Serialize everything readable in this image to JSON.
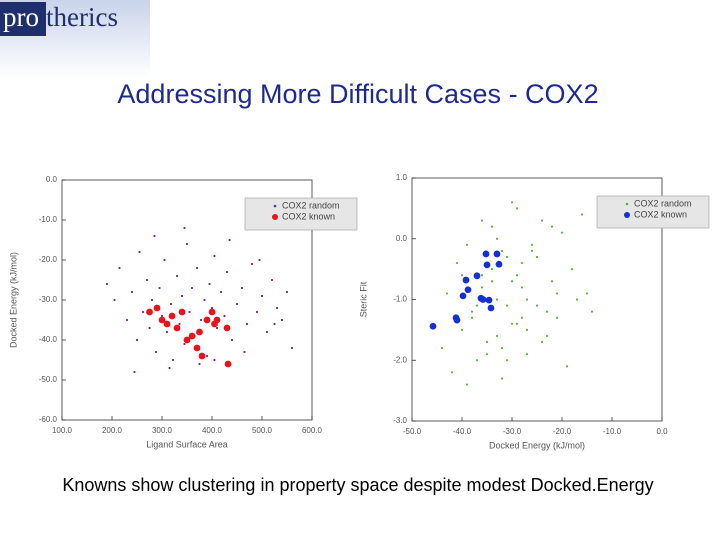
{
  "slide": {
    "logo_prefix": "pro",
    "logo_suffix": "therics",
    "title": "Addressing More Difficult Cases - COX2",
    "caption": "Knowns show clustering in property space despite modest Docked.Energy"
  },
  "chart_data": [
    {
      "type": "scatter",
      "x_label": "Ligand Surface Area",
      "y_label": "Docked Energy (kJ/mol)",
      "xlim": [
        100,
        600
      ],
      "ylim": [
        -60,
        0
      ],
      "xticks": [
        {
          "value": 100,
          "label": "100.0"
        },
        {
          "value": 200,
          "label": "200.0"
        },
        {
          "value": 300,
          "label": "300.0"
        },
        {
          "value": 400,
          "label": "400.0"
        },
        {
          "value": 500,
          "label": "500.0"
        },
        {
          "value": 600,
          "label": "600.0"
        }
      ],
      "yticks": [
        {
          "value": 0,
          "label": "0.0"
        },
        {
          "value": -10,
          "label": "-10.0"
        },
        {
          "value": -20,
          "label": "-20.0"
        },
        {
          "value": -30,
          "label": "-30.0"
        },
        {
          "value": -40,
          "label": "-40.0"
        },
        {
          "value": -50,
          "label": "-50.0"
        },
        {
          "value": -60,
          "label": "-60.0"
        }
      ],
      "legend": "upper right",
      "series": [
        {
          "name": "COX2 random",
          "color": "#6a2c91",
          "x": [
            190,
            205,
            215,
            230,
            240,
            250,
            255,
            262,
            270,
            275,
            280,
            288,
            295,
            300,
            305,
            310,
            318,
            322,
            330,
            335,
            340,
            345,
            350,
            355,
            360,
            365,
            370,
            378,
            385,
            390,
            395,
            400,
            405,
            410,
            418,
            425,
            430,
            440,
            450,
            460,
            470,
            480,
            490,
            500,
            510,
            520,
            530,
            540,
            550,
            560,
            245,
            285,
            315,
            345,
            375,
            405,
            435,
            465,
            495,
            525
          ],
          "values": [
            -26,
            -30,
            -22,
            -35,
            -28,
            -40,
            -18,
            -33,
            -25,
            -37,
            -30,
            -43,
            -27,
            -34,
            -20,
            -38,
            -31,
            -45,
            -24,
            -36,
            -29,
            -41,
            -16,
            -33,
            -27,
            -39,
            -22,
            -35,
            -30,
            -44,
            -26,
            -32,
            -19,
            -37,
            -28,
            -34,
            -23,
            -40,
            -31,
            -27,
            -36,
            -21,
            -33,
            -29,
            -38,
            -25,
            -32,
            -35,
            -28,
            -42,
            -48,
            -14,
            -47,
            -12,
            -46,
            -45,
            -15,
            -43,
            -20,
            -36
          ]
        },
        {
          "name": "COX2 known",
          "color": "#e8141c",
          "x": [
            275,
            290,
            300,
            310,
            320,
            330,
            340,
            350,
            360,
            370,
            375,
            380,
            390,
            400,
            405,
            410,
            430,
            432
          ],
          "values": [
            -33,
            -32,
            -35,
            -36,
            -34,
            -37,
            -33,
            -40,
            -39,
            -42,
            -38,
            -44,
            -35,
            -33,
            -36,
            -35,
            -37,
            -46
          ]
        }
      ]
    },
    {
      "type": "scatter",
      "x_label": "Docked Energy (kJ/mol)",
      "y_label": "Steric Fit",
      "xlim": [
        -50,
        0
      ],
      "ylim": [
        -3,
        1
      ],
      "xticks": [
        {
          "value": -50,
          "label": "-50.0"
        },
        {
          "value": -40,
          "label": "-40.0"
        },
        {
          "value": -30,
          "label": "-30.0"
        },
        {
          "value": -20,
          "label": "-20.0"
        },
        {
          "value": -10,
          "label": "-10.0"
        },
        {
          "value": 0,
          "label": "0.0"
        }
      ],
      "yticks": [
        {
          "value": 1,
          "label": "1.0"
        },
        {
          "value": 0,
          "label": "0.0"
        },
        {
          "value": -1,
          "label": "-1.0"
        },
        {
          "value": -2,
          "label": "-2.0"
        },
        {
          "value": -3,
          "label": "-3.0"
        }
      ],
      "legend": "upper right",
      "series": [
        {
          "name": "COX2 random",
          "color": "#5cb040",
          "x": [
            -44,
            -43,
            -42,
            -41,
            -40,
            -39,
            -38,
            -37,
            -36,
            -35,
            -34,
            -33,
            -32,
            -31,
            -30,
            -29,
            -28,
            -27,
            -26,
            -25,
            -24,
            -23,
            -22,
            -21,
            -20,
            -19,
            -18,
            -17,
            -16,
            -15,
            -38,
            -36,
            -34,
            -33,
            -32,
            -31,
            -30,
            -29,
            -28,
            -27,
            -35,
            -33,
            -31,
            -29,
            -27,
            -25,
            -23,
            -21,
            -39,
            -37,
            -36,
            -34,
            -32,
            -30,
            -28,
            -26,
            -24,
            -22,
            -40,
            -14
          ],
          "values": [
            -1.8,
            -0.9,
            -2.2,
            -0.4,
            -1.5,
            -0.1,
            -1.2,
            -2.0,
            -0.6,
            -1.7,
            0.2,
            -1.0,
            -2.3,
            -0.3,
            -1.4,
            0.5,
            -0.8,
            -1.9,
            -0.2,
            -1.1,
            0.3,
            -1.6,
            -0.7,
            -1.3,
            0.1,
            -2.1,
            -0.5,
            -1.0,
            0.4,
            -0.9,
            -1.3,
            -0.8,
            -0.5,
            -1.6,
            -0.2,
            -1.1,
            -0.7,
            -1.4,
            -0.4,
            -1.0,
            -1.9,
            0.0,
            -2.0,
            -0.6,
            -1.5,
            -0.3,
            -1.2,
            -0.9,
            -2.4,
            -1.1,
            0.3,
            -0.7,
            -1.8,
            0.6,
            -1.3,
            -0.1,
            -1.7,
            0.2,
            -0.6,
            -1.2
          ]
        },
        {
          "name": "COX2 known",
          "color": "#1430d0",
          "x": [
            -45.8,
            -41.2,
            -41.0,
            -39.8,
            -39.2,
            -38.8,
            -37.0,
            -36.2,
            -35.2,
            -35.0,
            -34.6,
            -34.2,
            -33.0,
            -32.6,
            -35.8
          ],
          "values": [
            -1.44,
            -1.3,
            -1.34,
            -0.94,
            -0.68,
            -0.84,
            -0.61,
            -0.98,
            -0.25,
            -0.43,
            -1.01,
            -1.14,
            -0.25,
            -0.42,
            -1.0
          ]
        }
      ]
    }
  ]
}
